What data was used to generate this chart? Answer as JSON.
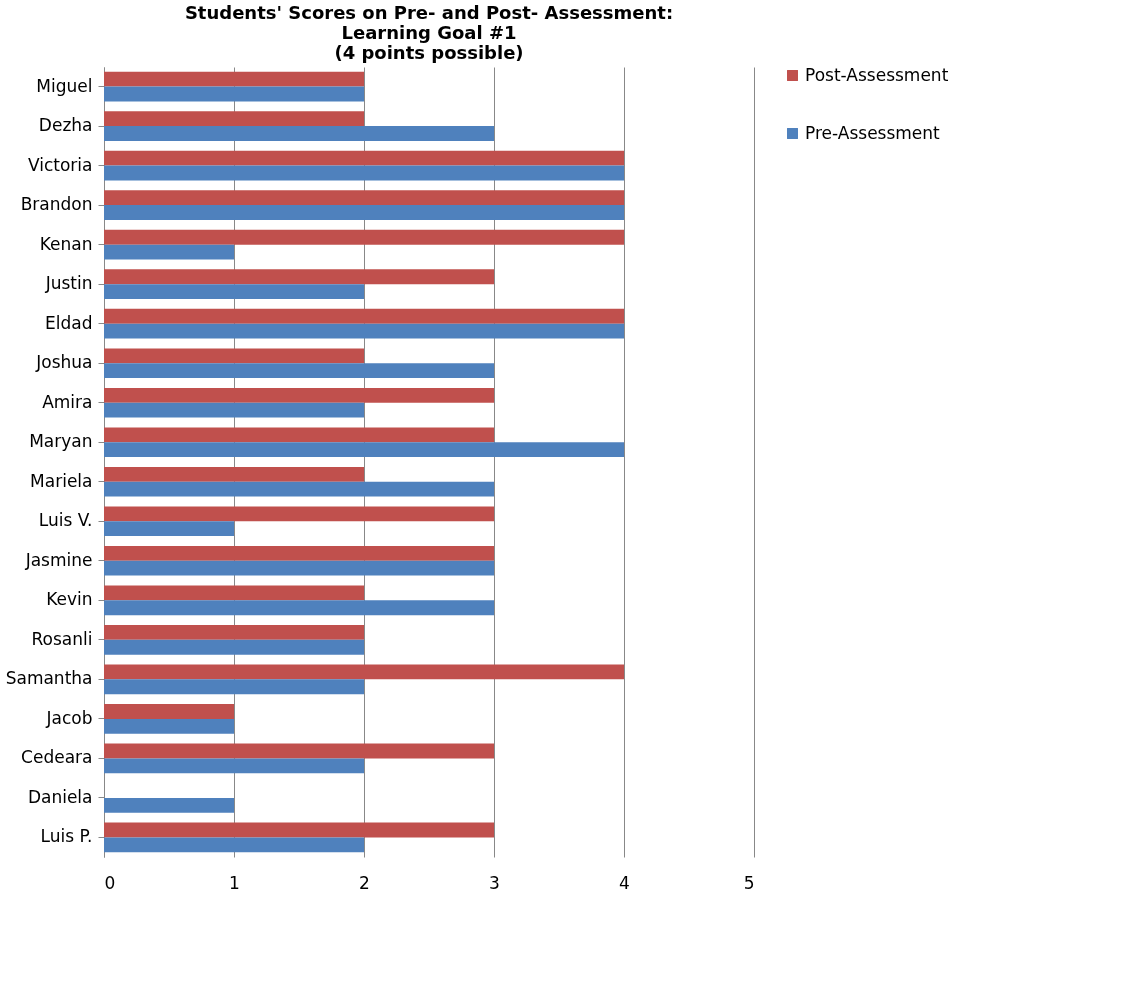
{
  "chart_data": {
    "type": "bar",
    "orientation": "horizontal",
    "title": "Students' Scores on Pre- and Post- Assessment:\nLearning Goal #1\n(4 points possible)",
    "categories": [
      "Miguel",
      "Dezha",
      "Victoria",
      "Brandon",
      "Kenan",
      "Justin",
      "Eldad",
      "Joshua",
      "Amira",
      "Maryan",
      "Mariela",
      "Luis V.",
      "Jasmine",
      "Kevin",
      "Rosanli",
      "Samantha",
      "Jacob",
      "Cedeara",
      "Daniela",
      "Luis P."
    ],
    "series": [
      {
        "name": "Post-Assessment",
        "color": "#c0504d",
        "values": [
          2,
          2,
          4,
          4,
          4,
          3,
          4,
          2,
          3,
          3,
          2,
          3,
          3,
          2,
          2,
          4,
          1,
          3,
          0,
          3
        ]
      },
      {
        "name": "Pre-Assessment",
        "color": "#4f81bd",
        "values": [
          2,
          3,
          4,
          4,
          1,
          2,
          4,
          3,
          2,
          4,
          3,
          1,
          3,
          3,
          2,
          2,
          1,
          2,
          1,
          2
        ]
      }
    ],
    "xlim": [
      0,
      5
    ],
    "xticks": [
      0,
      1,
      2,
      3,
      4,
      5
    ],
    "grid": "x",
    "legend": "right"
  }
}
